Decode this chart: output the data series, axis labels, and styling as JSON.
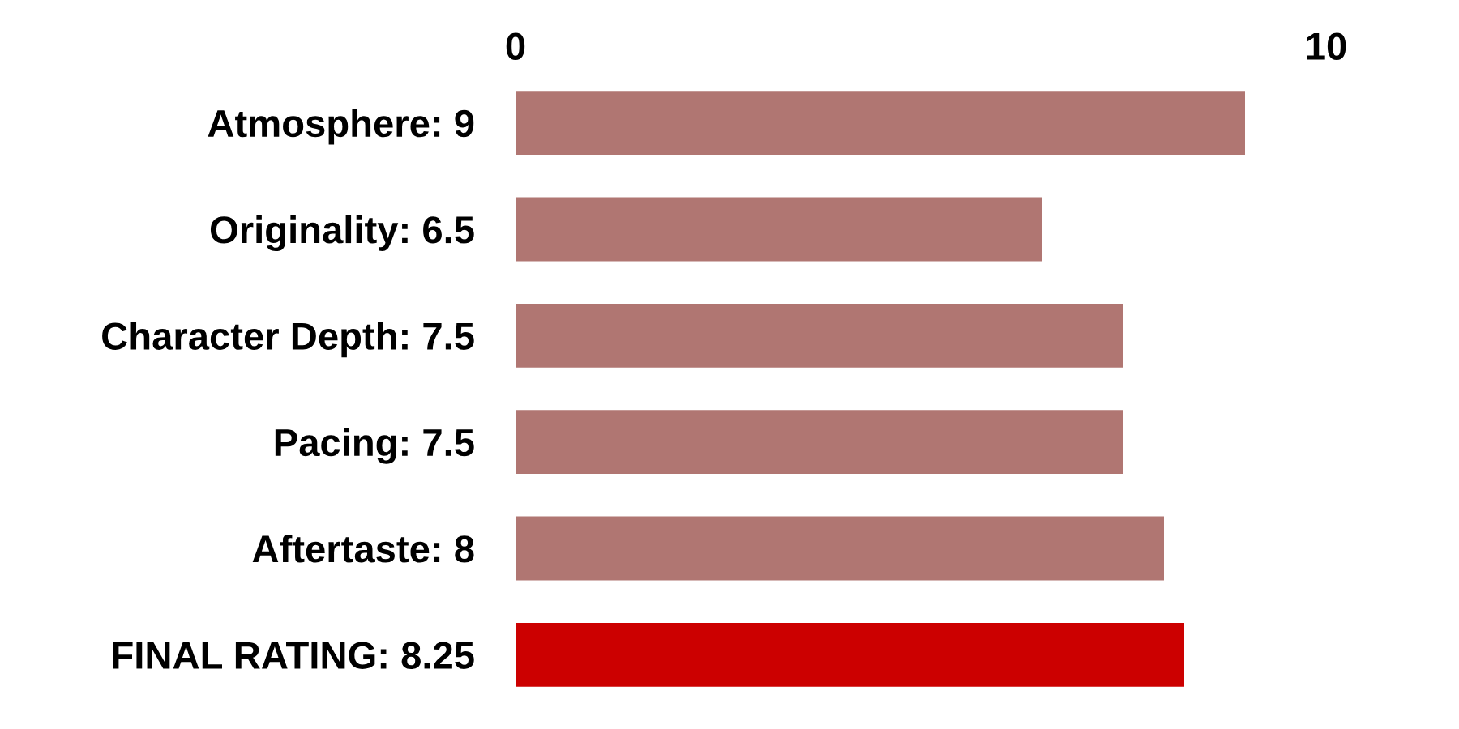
{
  "chart_data": {
    "type": "bar",
    "orientation": "horizontal",
    "categories": [
      "Atmosphere: 9",
      "Originality: 6.5",
      "Character Depth: 7.5",
      "Pacing: 7.5",
      "Aftertaste: 8",
      "FINAL RATING: 8.25"
    ],
    "values": [
      9,
      6.5,
      7.5,
      7.5,
      8,
      8.25
    ],
    "colors": [
      "#b07672",
      "#b07672",
      "#b07672",
      "#b07672",
      "#b07672",
      "#cc0000"
    ],
    "xlim": [
      0,
      10
    ],
    "xticks": [
      0,
      10
    ],
    "grid": false
  }
}
